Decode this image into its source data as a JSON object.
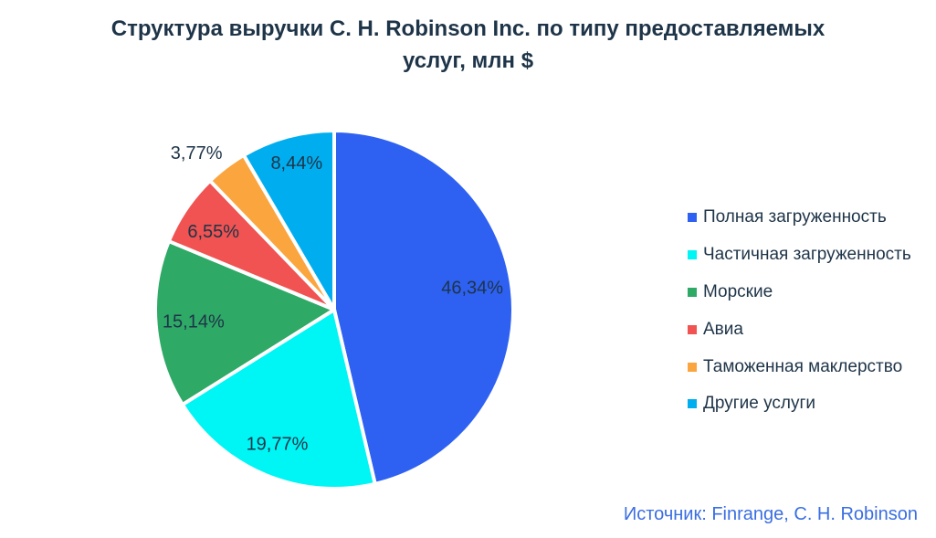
{
  "title": {
    "lines": [
      "Структура выручки C. H. Robinson Inc. по типу предоставляемых",
      "услуг, млн $"
    ]
  },
  "chart_data": {
    "type": "pie",
    "title": "Структура выручки C. H. Robinson Inc. по типу предоставляемых услуг, млн $",
    "legend_position": "right",
    "slices": [
      {
        "label": "Полная загруженность",
        "value": 46.34,
        "display": "46,34%",
        "color": "#2E61F1"
      },
      {
        "label": "Частичная загруженность",
        "value": 19.77,
        "display": "19,77%",
        "color": "#00F5F5"
      },
      {
        "label": "Морские",
        "value": 15.14,
        "display": "15,14%",
        "color": "#2FA966"
      },
      {
        "label": "Авиа",
        "value": 6.55,
        "display": "6,55%",
        "color": "#F05351"
      },
      {
        "label": "Таможенная маклерство",
        "value": 3.77,
        "display": "3,77%",
        "color": "#FBA53F"
      },
      {
        "label": "Другие услуги",
        "value": 8.44,
        "display": "8,44%",
        "color": "#00AEF0"
      }
    ]
  },
  "source": {
    "text": "Источник: Finrange, C. H. Robinson"
  }
}
